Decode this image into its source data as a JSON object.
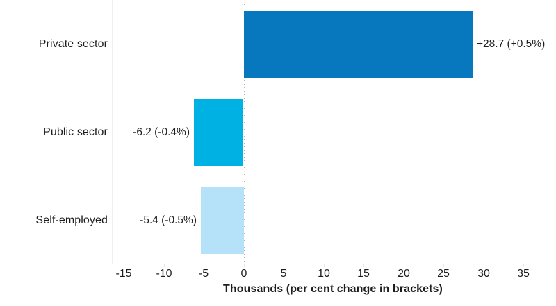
{
  "chart_data": {
    "type": "bar",
    "orientation": "horizontal",
    "title": "",
    "xlabel": "Thousands (per cent change in brackets)",
    "ylabel": "",
    "categories": [
      "Private sector",
      "Public sector",
      "Self-employed"
    ],
    "values": [
      28.7,
      -6.2,
      -5.4
    ],
    "data_labels": [
      "+28.7 (+0.5%)",
      "-6.2 (-0.4%)",
      "-5.4 (-0.5%)"
    ],
    "bar_colors": [
      "#0878be",
      "#00b1e4",
      "#b5e2f8"
    ],
    "x_ticks": [
      -15,
      -10,
      -5,
      0,
      5,
      10,
      15,
      20,
      25,
      30,
      35
    ],
    "xlim": [
      -16.5,
      38.8
    ],
    "grid": "off",
    "zero_line": "dotted",
    "legend": "none"
  },
  "colors": {
    "axis_line": "#eeeeee",
    "zero_line_dots": "#b3b3b3",
    "text": "#1d1d1b",
    "background": "#ffffff"
  }
}
